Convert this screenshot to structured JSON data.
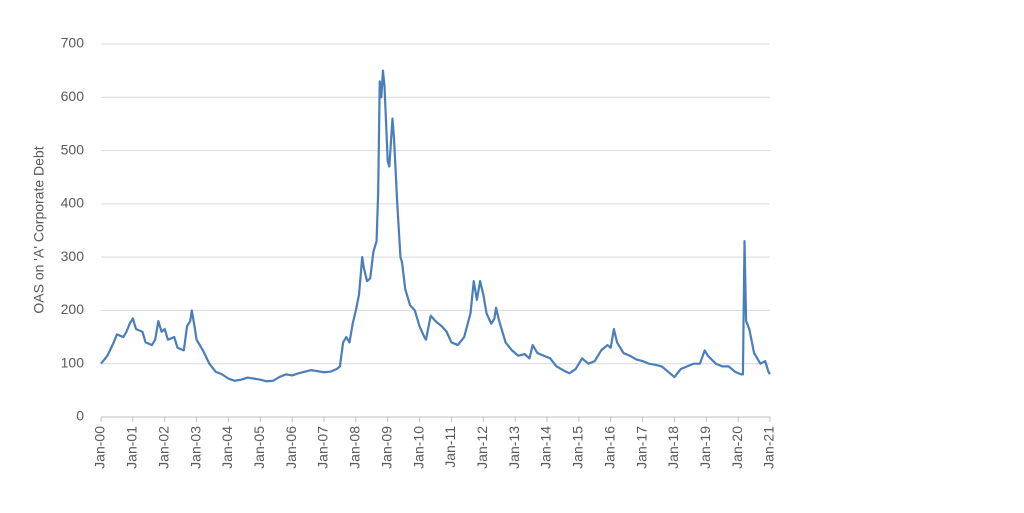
{
  "chart_data": {
    "type": "line",
    "y_label": "OAS on 'A' Corporate Debt",
    "x": [
      2000.0,
      2000.2,
      2000.4,
      2000.5,
      2000.7,
      2000.8,
      2000.9,
      2001.0,
      2001.1,
      2001.3,
      2001.4,
      2001.6,
      2001.7,
      2001.8,
      2001.9,
      2002.0,
      2002.1,
      2002.3,
      2002.4,
      2002.6,
      2002.7,
      2002.8,
      2002.85,
      2002.95,
      2003.0,
      2003.2,
      2003.4,
      2003.6,
      2003.8,
      2004.0,
      2004.2,
      2004.4,
      2004.6,
      2004.8,
      2005.0,
      2005.2,
      2005.4,
      2005.6,
      2005.8,
      2006.0,
      2006.2,
      2006.4,
      2006.6,
      2006.8,
      2007.0,
      2007.2,
      2007.4,
      2007.5,
      2007.6,
      2007.7,
      2007.8,
      2007.9,
      2008.0,
      2008.1,
      2008.2,
      2008.25,
      2008.35,
      2008.45,
      2008.55,
      2008.65,
      2008.7,
      2008.75,
      2008.8,
      2008.85,
      2008.9,
      2008.95,
      2009.0,
      2009.05,
      2009.15,
      2009.2,
      2009.3,
      2009.4,
      2009.45,
      2009.55,
      2009.7,
      2009.85,
      2010.0,
      2010.15,
      2010.2,
      2010.35,
      2010.5,
      2010.7,
      2010.85,
      2011.0,
      2011.2,
      2011.4,
      2011.6,
      2011.7,
      2011.8,
      2011.9,
      2012.0,
      2012.1,
      2012.25,
      2012.35,
      2012.4,
      2012.5,
      2012.7,
      2012.9,
      2013.1,
      2013.3,
      2013.45,
      2013.55,
      2013.7,
      2013.9,
      2014.1,
      2014.3,
      2014.5,
      2014.7,
      2014.9,
      2015.0,
      2015.1,
      2015.3,
      2015.5,
      2015.7,
      2015.9,
      2016.0,
      2016.1,
      2016.2,
      2016.4,
      2016.6,
      2016.8,
      2017.0,
      2017.2,
      2017.4,
      2017.6,
      2017.8,
      2018.0,
      2018.2,
      2018.4,
      2018.6,
      2018.8,
      2018.95,
      2019.05,
      2019.3,
      2019.5,
      2019.7,
      2019.9,
      2020.1,
      2020.15,
      2020.2,
      2020.25,
      2020.35,
      2020.5,
      2020.7,
      2020.85,
      2020.95,
      2021.0
    ],
    "series": [
      {
        "color": "#4a7ebb",
        "values": [
          100,
          115,
          140,
          155,
          150,
          160,
          175,
          185,
          165,
          160,
          140,
          135,
          145,
          180,
          160,
          165,
          145,
          150,
          130,
          125,
          170,
          180,
          200,
          165,
          145,
          125,
          100,
          85,
          80,
          72,
          68,
          70,
          74,
          72,
          70,
          67,
          68,
          75,
          80,
          78,
          82,
          85,
          88,
          86,
          84,
          85,
          90,
          95,
          140,
          150,
          140,
          175,
          200,
          230,
          300,
          280,
          255,
          260,
          310,
          330,
          420,
          630,
          600,
          650,
          620,
          550,
          480,
          470,
          560,
          520,
          400,
          300,
          290,
          240,
          210,
          200,
          170,
          150,
          145,
          190,
          180,
          170,
          160,
          140,
          135,
          150,
          195,
          255,
          220,
          255,
          230,
          195,
          175,
          185,
          205,
          180,
          140,
          125,
          115,
          118,
          110,
          135,
          120,
          115,
          110,
          95,
          88,
          82,
          90,
          100,
          110,
          100,
          105,
          125,
          135,
          130,
          165,
          140,
          120,
          115,
          108,
          105,
          100,
          98,
          95,
          85,
          75,
          90,
          95,
          100,
          100,
          125,
          115,
          100,
          95,
          95,
          85,
          80,
          80,
          330,
          180,
          165,
          120,
          100,
          105,
          85,
          80
        ]
      }
    ],
    "xlim": [
      2000,
      2021
    ],
    "xticks": [
      {
        "value": 2000,
        "label": "Jan-00"
      },
      {
        "value": 2001,
        "label": "Jan-01"
      },
      {
        "value": 2002,
        "label": "Jan-02"
      },
      {
        "value": 2003,
        "label": "Jan-03"
      },
      {
        "value": 2004,
        "label": "Jan-04"
      },
      {
        "value": 2005,
        "label": "Jan-05"
      },
      {
        "value": 2006,
        "label": "Jan-06"
      },
      {
        "value": 2007,
        "label": "Jan-07"
      },
      {
        "value": 2008,
        "label": "Jan-08"
      },
      {
        "value": 2009,
        "label": "Jan-09"
      },
      {
        "value": 2010,
        "label": "Jan-10"
      },
      {
        "value": 2011,
        "label": "Jan-11"
      },
      {
        "value": 2012,
        "label": "Jan-12"
      },
      {
        "value": 2013,
        "label": "Jan-13"
      },
      {
        "value": 2014,
        "label": "Jan-14"
      },
      {
        "value": 2015,
        "label": "Jan-15"
      },
      {
        "value": 2016,
        "label": "Jan-16"
      },
      {
        "value": 2017,
        "label": "Jan-17"
      },
      {
        "value": 2018,
        "label": "Jan-18"
      },
      {
        "value": 2019,
        "label": "Jan-19"
      },
      {
        "value": 2020,
        "label": "Jan-20"
      },
      {
        "value": 2021,
        "label": "Jan-21"
      }
    ],
    "ylim": [
      0,
      700
    ],
    "yticks": [
      0,
      100,
      200,
      300,
      400,
      500,
      600,
      700
    ],
    "grid": true
  }
}
